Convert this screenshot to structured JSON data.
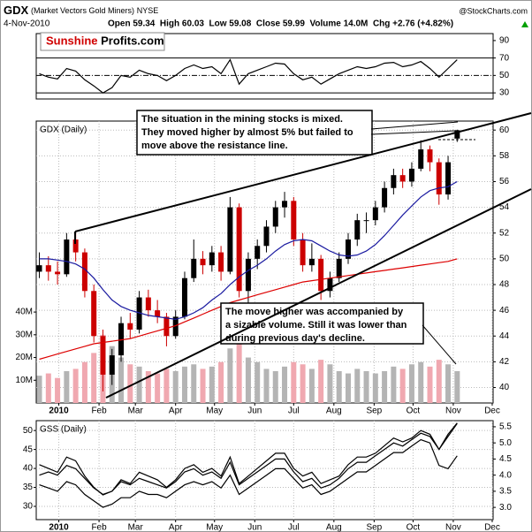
{
  "header": {
    "symbol": "GDX",
    "name": "(Market Vectors Gold Miners)",
    "exchange": "NYSE",
    "date": "4-Nov-2010",
    "quote": "Open 59.34  High 60.03  Low 59.08  Close 59.99  Volume 14.0M  Chg +2.76 (+4.82%)",
    "credit": "@StockCharts.com",
    "logo_a": "Sunshine",
    "logo_b": "Profits.com"
  },
  "chart_data": [
    {
      "type": "line",
      "y_side": "right",
      "x": [
        -14,
        -7,
        0,
        7,
        14,
        21,
        28,
        35,
        42,
        49,
        56,
        63,
        70,
        77,
        84,
        91,
        98,
        105,
        112,
        119,
        126,
        133,
        140,
        147,
        154,
        161,
        168,
        175,
        182,
        189,
        196,
        203,
        210,
        217,
        224,
        231,
        238,
        245,
        252,
        259,
        266,
        273,
        280,
        287,
        294,
        301,
        308
      ],
      "xlim": [
        -16.4,
        335.7
      ],
      "ylim": [
        23,
        98
      ],
      "yticks": [
        30,
        50,
        70,
        90
      ],
      "hlines": [
        {
          "value": 70,
          "style": "solid"
        },
        {
          "value": 50,
          "style": "dashdot"
        },
        {
          "value": 30,
          "style": "solid"
        }
      ],
      "series": [
        {
          "color": "#000000",
          "values": [
            52,
            48,
            46,
            58,
            55,
            45,
            38,
            30,
            36,
            50,
            48,
            56,
            52,
            50,
            44,
            50,
            58,
            62,
            58,
            60,
            52,
            68,
            40,
            52,
            56,
            60,
            64,
            63,
            52,
            45,
            48,
            40,
            46,
            52,
            56,
            60,
            58,
            60,
            64,
            65,
            60,
            62,
            66,
            58,
            48,
            58,
            68
          ]
        }
      ]
    },
    {
      "type": "candlestick",
      "title": "GDX (Daily)",
      "y_side": "right",
      "grid": true,
      "x": [
        -14,
        -7,
        0,
        7,
        14,
        21,
        28,
        35,
        42,
        49,
        56,
        63,
        70,
        77,
        84,
        91,
        98,
        105,
        112,
        119,
        126,
        133,
        140,
        147,
        154,
        161,
        168,
        175,
        182,
        189,
        196,
        203,
        210,
        217,
        224,
        231,
        238,
        245,
        252,
        259,
        266,
        273,
        280,
        287,
        294,
        301,
        308
      ],
      "xlim": [
        -16.4,
        335.7
      ],
      "xticks": [
        {
          "value": 1,
          "label": "2010"
        },
        {
          "value": 32,
          "label": "Feb"
        },
        {
          "value": 60,
          "label": "Mar"
        },
        {
          "value": 91,
          "label": "Apr"
        },
        {
          "value": 121,
          "label": "May"
        },
        {
          "value": 152,
          "label": "Jun"
        },
        {
          "value": 182,
          "label": "Jul"
        },
        {
          "value": 213,
          "label": "Aug"
        },
        {
          "value": 244,
          "label": "Sep"
        },
        {
          "value": 274,
          "label": "Oct"
        },
        {
          "value": 305,
          "label": "Nov"
        },
        {
          "value": 335,
          "label": "Dec"
        }
      ],
      "ylim": [
        38.8,
        60.7
      ],
      "yticks": [
        40,
        42,
        44,
        46,
        48,
        50,
        52,
        54,
        56,
        58,
        60
      ],
      "y2lim": [
        0,
        124
      ],
      "y2ticks": [
        {
          "value": 10,
          "label": "10M"
        },
        {
          "value": 20,
          "label": "20M"
        },
        {
          "value": 30,
          "label": "30M"
        },
        {
          "value": 40,
          "label": "40M"
        }
      ],
      "up_color": "#000000",
      "down_color": "#cc0000",
      "open": [
        49.0,
        49.5,
        49.0,
        48.8,
        51.5,
        50.5,
        47.5,
        44.0,
        41.0,
        42.5,
        45.0,
        44.5,
        47.0,
        46.0,
        45.5,
        44.0,
        45.5,
        48.5,
        50.0,
        49.5,
        50.5,
        49.0,
        54.0,
        47.5,
        50.0,
        51.0,
        52.5,
        54.0,
        54.5,
        51.5,
        49.5,
        50.0,
        47.5,
        48.5,
        50.0,
        51.5,
        53.0,
        53.0,
        54.0,
        55.5,
        56.5,
        56.0,
        57.0,
        58.5,
        57.5,
        55.0,
        59.34
      ],
      "high": [
        50.5,
        50.2,
        49.8,
        52.0,
        52.0,
        50.8,
        48.0,
        44.5,
        43.0,
        45.5,
        45.8,
        47.5,
        47.6,
        46.8,
        45.8,
        46.0,
        49.0,
        51.5,
        50.6,
        51.0,
        51.0,
        54.8,
        54.3,
        50.5,
        51.5,
        53.0,
        54.5,
        55.2,
        54.8,
        52.0,
        51.2,
        50.3,
        49.0,
        50.5,
        52.0,
        53.5,
        53.6,
        54.5,
        56.0,
        57.0,
        57.0,
        57.5,
        59.2,
        58.8,
        57.8,
        58.0,
        60.03
      ],
      "low": [
        48.5,
        48.3,
        48.0,
        48.6,
        49.8,
        47.0,
        43.5,
        39.7,
        40.2,
        42.0,
        43.8,
        44.2,
        45.5,
        45.0,
        43.2,
        43.8,
        45.3,
        48.2,
        48.8,
        49.0,
        48.3,
        48.8,
        47.0,
        46.5,
        49.2,
        50.5,
        52.0,
        53.2,
        51.0,
        49.0,
        49.0,
        46.8,
        47.0,
        48.2,
        49.6,
        51.0,
        52.0,
        52.6,
        53.6,
        55.0,
        55.5,
        55.6,
        56.8,
        56.8,
        54.2,
        54.6,
        59.08
      ],
      "close": [
        49.5,
        49.0,
        48.8,
        51.5,
        50.5,
        47.5,
        44.0,
        41.0,
        42.5,
        45.0,
        44.5,
        47.0,
        46.0,
        45.5,
        44.0,
        45.5,
        48.5,
        50.0,
        49.5,
        50.5,
        49.0,
        54.0,
        47.5,
        50.0,
        51.0,
        52.5,
        54.0,
        54.5,
        51.5,
        49.5,
        50.0,
        47.5,
        48.5,
        50.0,
        51.5,
        53.0,
        53.0,
        54.0,
        55.5,
        56.5,
        56.0,
        57.0,
        58.5,
        57.5,
        55.0,
        57.5,
        59.99
      ],
      "volume": {
        "axis": "y2",
        "up_color": "#b4b4b4",
        "down_color": "#f0a8b0",
        "values": [
          12,
          13,
          11,
          14,
          15,
          18,
          22,
          30,
          25,
          20,
          17,
          16,
          14,
          13,
          15,
          14,
          16,
          17,
          15,
          16,
          18,
          24,
          26,
          20,
          18,
          15,
          14,
          16,
          18,
          17,
          15,
          19,
          17,
          14,
          13,
          15,
          14,
          13,
          14,
          16,
          15,
          17,
          18,
          16,
          19,
          17,
          14.0
        ]
      },
      "series": [
        {
          "color": "#1a1aa0",
          "values": [
            50.0,
            50.0,
            49.9,
            49.8,
            49.6,
            49.2,
            48.5,
            47.6,
            46.8,
            46.3,
            46.0,
            45.8,
            45.6,
            45.5,
            45.4,
            45.3,
            45.5,
            45.8,
            46.2,
            46.8,
            47.3,
            48.0,
            48.6,
            49.1,
            49.5,
            50.0,
            50.6,
            51.1,
            51.4,
            51.5,
            51.4,
            51.0,
            50.6,
            50.3,
            50.2,
            50.3,
            50.6,
            51.1,
            51.8,
            52.6,
            53.4,
            54.1,
            54.8,
            55.3,
            55.5,
            55.6,
            56.0
          ]
        },
        {
          "color": "#dd0000",
          "values": [
            42.2,
            42.4,
            42.6,
            42.8,
            43.0,
            43.2,
            43.4,
            43.5,
            43.6,
            43.7,
            43.8,
            44.0,
            44.2,
            44.4,
            44.6,
            44.8,
            45.1,
            45.4,
            45.7,
            46.0,
            46.3,
            46.6,
            46.8,
            47.0,
            47.2,
            47.4,
            47.6,
            47.8,
            48.0,
            48.2,
            48.3,
            48.4,
            48.5,
            48.6,
            48.7,
            48.8,
            48.9,
            49.0,
            49.1,
            49.2,
            49.3,
            49.4,
            49.5,
            49.6,
            49.7,
            49.8,
            50.0
          ]
        }
      ],
      "annotations": [
        {
          "lines": [
            "The situation in the mining stocks is mixed.",
            "They moved higher by almost 5% but failed to",
            "move above the resistance line."
          ]
        },
        {
          "lines": [
            "The move higher was accompanied by",
            "a sizable volume. Still it was lower than",
            "during previous day's decline."
          ]
        }
      ]
    },
    {
      "type": "line",
      "title": "GSS (Daily)",
      "y_side": "left",
      "grid": true,
      "x": [
        -14,
        -7,
        0,
        7,
        14,
        21,
        28,
        35,
        42,
        49,
        56,
        63,
        70,
        77,
        84,
        91,
        98,
        105,
        112,
        119,
        126,
        133,
        140,
        147,
        154,
        161,
        168,
        175,
        182,
        189,
        196,
        203,
        210,
        217,
        224,
        231,
        238,
        245,
        252,
        259,
        266,
        273,
        280,
        287,
        294,
        301,
        308
      ],
      "xlim": [
        -16.4,
        335.7
      ],
      "xticks": [
        {
          "value": 1,
          "label": "2010"
        },
        {
          "value": 32,
          "label": "Feb"
        },
        {
          "value": 60,
          "label": "Mar"
        },
        {
          "value": 91,
          "label": "Apr"
        },
        {
          "value": 121,
          "label": "May"
        },
        {
          "value": 152,
          "label": "Jun"
        },
        {
          "value": 182,
          "label": "Jul"
        },
        {
          "value": 213,
          "label": "Aug"
        },
        {
          "value": 244,
          "label": "Sep"
        },
        {
          "value": 274,
          "label": "Oct"
        },
        {
          "value": 305,
          "label": "Nov"
        },
        {
          "value": 335,
          "label": "Dec"
        }
      ],
      "ylim": [
        26.5,
        52.6
      ],
      "yticks": [
        30,
        35,
        40,
        45,
        50
      ],
      "y2lim": [
        2.62,
        5.69
      ],
      "y2ticks": [
        {
          "value": 3,
          "label": "3.0"
        },
        3.5,
        {
          "value": 4,
          "label": "4.0"
        },
        4.5,
        {
          "value": 5,
          "label": "5.0"
        },
        5.5
      ],
      "series": [
        {
          "color": "#000000",
          "axis": "y2",
          "values": [
            4.0,
            4.1,
            4.0,
            4.3,
            4.2,
            3.9,
            3.6,
            3.4,
            3.5,
            3.8,
            3.7,
            3.9,
            3.8,
            3.7,
            3.6,
            3.8,
            4.1,
            4.2,
            4.0,
            4.1,
            3.9,
            4.4,
            3.7,
            3.9,
            4.1,
            4.3,
            4.5,
            4.5,
            4.1,
            3.8,
            3.9,
            3.6,
            3.7,
            3.9,
            4.2,
            4.4,
            4.4,
            4.6,
            4.8,
            5.0,
            4.9,
            5.1,
            5.3,
            5.2,
            4.8,
            5.2,
            5.6
          ]
        },
        {
          "color": "#000000",
          "values": [
            41,
            40,
            39,
            43,
            42,
            38,
            35,
            33,
            34,
            37,
            36,
            39,
            38,
            37,
            35,
            37,
            40,
            41,
            39,
            40,
            38,
            43,
            36,
            38,
            40,
            42,
            44,
            44,
            40,
            38,
            39,
            36,
            37,
            38,
            41,
            43,
            43,
            44,
            46,
            48,
            47,
            48,
            50,
            49,
            45,
            49,
            52
          ]
        },
        {
          "color": "#000000",
          "axis": "y2",
          "values": [
            3.7,
            3.6,
            3.5,
            3.8,
            3.7,
            3.4,
            3.2,
            3.0,
            3.1,
            3.3,
            3.3,
            3.5,
            3.4,
            3.4,
            3.3,
            3.5,
            3.7,
            3.8,
            3.7,
            3.8,
            3.6,
            4.0,
            3.4,
            3.6,
            3.8,
            4.0,
            4.2,
            4.2,
            3.9,
            3.6,
            3.7,
            3.4,
            3.5,
            3.7,
            3.9,
            4.1,
            4.1,
            4.3,
            4.5,
            4.7,
            4.7,
            4.9,
            5.1,
            5.0,
            4.3,
            4.2,
            4.6
          ]
        }
      ]
    }
  ]
}
